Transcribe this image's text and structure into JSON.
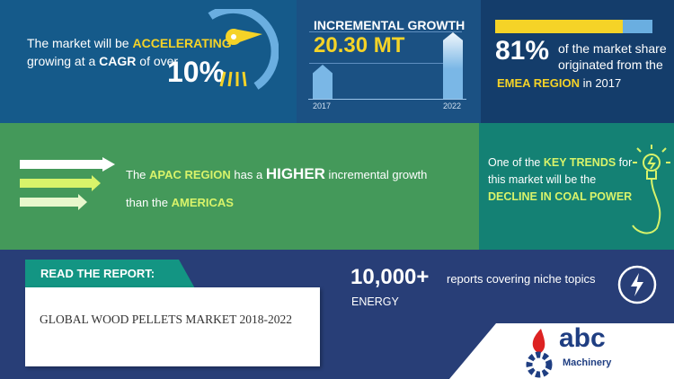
{
  "cagr": {
    "line1_prefix": "The market will be ",
    "line1_highlight": "ACCELERATING",
    "line2_prefix": "growing at a ",
    "line2_highlight": "CAGR",
    "line2_suffix": " of over",
    "value": "10%",
    "icon": "speedometer-icon"
  },
  "growth": {
    "title": "INCREMENTAL GROWTH",
    "value": "20.30 MT",
    "year_start": "2017",
    "year_end": "2022"
  },
  "emea": {
    "percent": "81%",
    "share_fraction": 0.81,
    "text1": "of the market share",
    "text2": "originated from the",
    "highlight": "EMEA REGION",
    "suffix": " in 2017",
    "colors": {
      "filled": "#f5d327",
      "rest": "#6aaee0"
    }
  },
  "apac": {
    "prefix": "The ",
    "region": "APAC REGION",
    "mid": " has a ",
    "higher": "HIGHER",
    "suffix": " incremental growth",
    "line2_prefix": "than the ",
    "americas": "AMERICAS",
    "icon": "arrows-icon"
  },
  "trend": {
    "prefix": "One of the ",
    "highlight": "KEY TRENDS",
    "suffix": " for",
    "line2": "this market will be the",
    "line3": "DECLINE IN COAL POWER",
    "icon": "lightbulb-icon"
  },
  "report": {
    "tab_label": "READ THE REPORT:",
    "title": "GLOBAL WOOD PELLETS MARKET 2018-2022"
  },
  "reports": {
    "count": "10,000+",
    "text": "reports covering niche topics",
    "category": "ENERGY",
    "icon": "lightning-icon"
  },
  "logo": {
    "name": "abc",
    "sub": "Machinery"
  }
}
